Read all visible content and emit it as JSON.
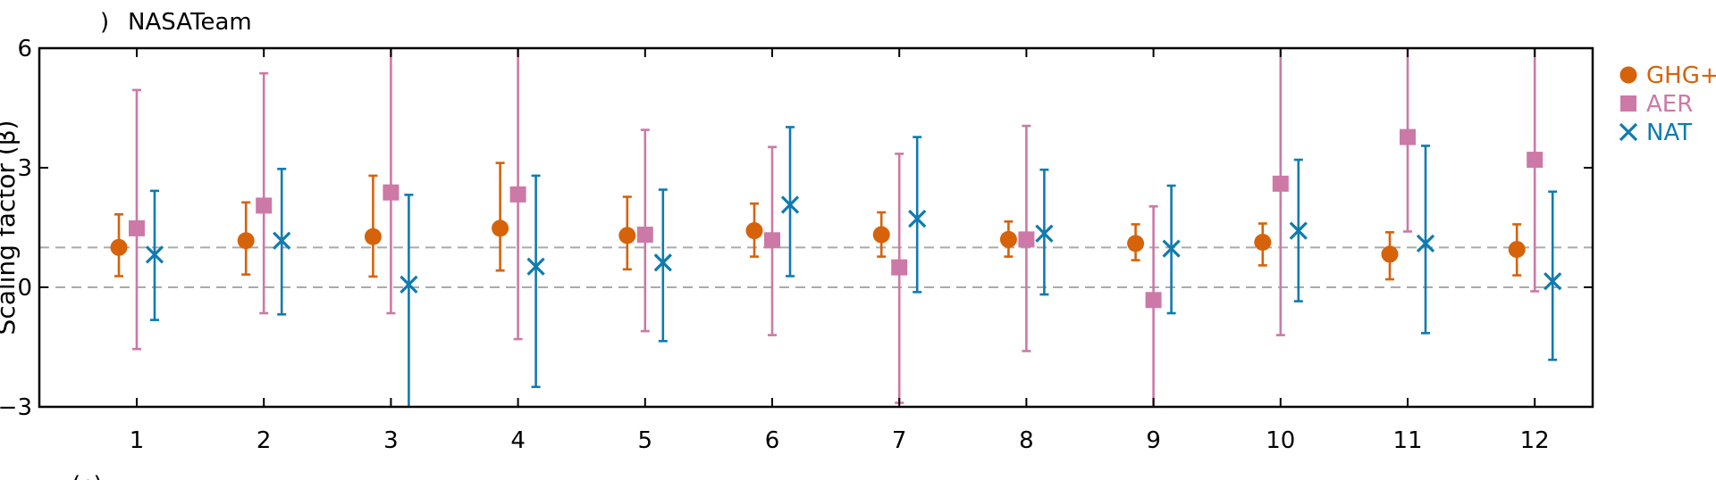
{
  "chart_data": {
    "type": "scatter",
    "panel_label": ")",
    "title": "NASATeam",
    "ylabel": "Scaling factor (β)",
    "xlabel": "",
    "ylim": [
      -3,
      6
    ],
    "yticks": [
      -3,
      0,
      3,
      6
    ],
    "xticks": [
      1,
      2,
      3,
      4,
      5,
      6,
      7,
      8,
      9,
      10,
      11,
      12
    ],
    "reference_lines": [
      0,
      1
    ],
    "next_panel_label": "(c)",
    "colors": {
      "ghg": "#d6620a",
      "aer": "#cc79a7",
      "nat": "#0f7bb0",
      "ref": "#aaaaaa"
    },
    "series": [
      {
        "name": "GHG+",
        "marker": "circle",
        "x": [
          1,
          2,
          3,
          4,
          5,
          6,
          7,
          8,
          9,
          10,
          11,
          12
        ],
        "values": [
          1.0,
          1.17,
          1.27,
          1.48,
          1.3,
          1.42,
          1.32,
          1.2,
          1.1,
          1.13,
          0.83,
          0.95
        ],
        "lower": [
          0.28,
          0.32,
          0.27,
          0.42,
          0.45,
          0.77,
          0.77,
          0.77,
          0.68,
          0.55,
          0.2,
          0.3
        ],
        "upper": [
          1.83,
          2.13,
          2.8,
          3.12,
          2.27,
          2.1,
          1.88,
          1.65,
          1.58,
          1.6,
          1.38,
          1.58
        ]
      },
      {
        "name": "AER",
        "marker": "square",
        "x": [
          1,
          2,
          3,
          4,
          5,
          6,
          7,
          8,
          9,
          10,
          11,
          12
        ],
        "values": [
          1.48,
          2.05,
          2.38,
          2.33,
          1.32,
          1.18,
          0.5,
          1.2,
          -0.32,
          2.6,
          3.77,
          3.2
        ],
        "lower": [
          -1.55,
          -0.65,
          -0.65,
          -1.3,
          -1.1,
          -1.2,
          -2.9,
          -1.6,
          -3.0,
          -1.2,
          1.4,
          -0.1
        ],
        "upper": [
          4.95,
          5.37,
          6.0,
          6.0,
          3.95,
          3.52,
          3.35,
          4.05,
          2.03,
          6.0,
          6.0,
          6.0
        ]
      },
      {
        "name": "NAT",
        "marker": "x",
        "x": [
          1,
          2,
          3,
          4,
          5,
          6,
          7,
          8,
          9,
          10,
          11,
          12
        ],
        "values": [
          0.82,
          1.17,
          0.07,
          0.52,
          0.62,
          2.07,
          1.72,
          1.35,
          0.97,
          1.42,
          1.1,
          0.15
        ],
        "lower": [
          -0.82,
          -0.68,
          -3.0,
          -2.5,
          -1.35,
          0.28,
          -0.12,
          -0.18,
          -0.65,
          -0.35,
          -1.15,
          -1.82
        ],
        "upper": [
          2.42,
          2.97,
          2.32,
          2.8,
          2.45,
          4.02,
          3.77,
          2.95,
          2.55,
          3.2,
          3.55,
          2.4
        ]
      }
    ],
    "legend": [
      {
        "label": "GHG+",
        "marker": "circle"
      },
      {
        "label": "AER",
        "marker": "square"
      },
      {
        "label": "NAT",
        "marker": "x"
      }
    ]
  }
}
